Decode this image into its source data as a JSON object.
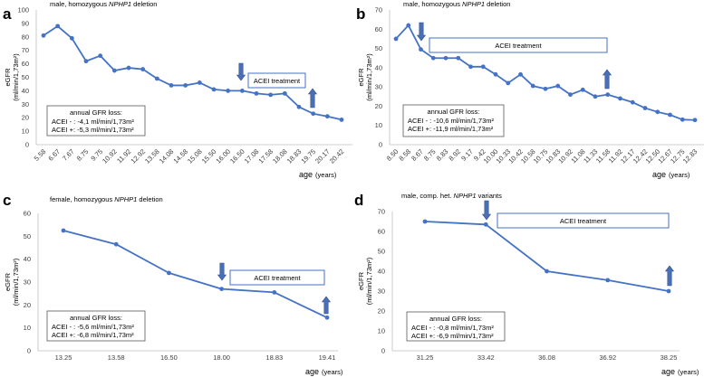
{
  "chart_data": [
    {
      "type": "line",
      "panel_letter": "a",
      "title_parts": [
        "male, homozygous ",
        "NPHP1",
        " deletion"
      ],
      "ylabel": [
        "eGFR",
        "(ml/min/1,73m²)"
      ],
      "xlabel": "age",
      "xlabel_unit": "(years)",
      "ylim": [
        0,
        100
      ],
      "yticks": [
        0,
        10,
        20,
        30,
        40,
        50,
        60,
        70,
        80,
        90,
        100
      ],
      "categories": [
        "5.58",
        "6.67",
        "7.67",
        "8.75",
        "9.75",
        "10.92",
        "11.92",
        "12.92",
        "13.58",
        "14.08",
        "14.58",
        "15.08",
        "15.50",
        "16.00",
        "16.50",
        "17.08",
        "17.58",
        "18.08",
        "18.83",
        "19.75",
        "20.17",
        "20.42"
      ],
      "values": [
        81,
        88,
        79,
        62,
        66,
        55,
        57,
        56,
        49,
        44,
        44,
        46,
        41,
        40,
        40,
        38,
        37,
        38,
        28,
        23,
        21,
        18.5
      ],
      "treatment_label": "ACEI treatment",
      "treatment_start_category": "16.50",
      "treatment_end_category": "19.75",
      "loss_box": {
        "title": "annual GFR loss:",
        "line1": "ACEI - :  -4,1 ml/min/1,73m²",
        "line2": "ACEI +:  -5,3 ml/min/1,73m²"
      }
    },
    {
      "type": "line",
      "panel_letter": "b",
      "title_parts": [
        "male, homozygous ",
        "NPHP1",
        " deletion"
      ],
      "ylabel": [
        "eGFR",
        "(ml/min/1,73m²)"
      ],
      "xlabel": "age",
      "xlabel_unit": "(years)",
      "ylim": [
        0,
        70
      ],
      "yticks": [
        0,
        10,
        20,
        30,
        40,
        50,
        60,
        70
      ],
      "categories": [
        "8.50",
        "8.58",
        "8.67",
        "8.75",
        "8.83",
        "8.92",
        "9.17",
        "9.42",
        "10.00",
        "10.33",
        "10.42",
        "10.58",
        "10.75",
        "10.83",
        "10.92",
        "11.08",
        "11.33",
        "11.58",
        "11.92",
        "12.17",
        "12.42",
        "12.50",
        "12.67",
        "12.75",
        "12.83"
      ],
      "values": [
        55,
        62,
        49.5,
        45,
        45,
        45,
        40.5,
        40.5,
        36.5,
        32,
        36.5,
        30.5,
        29,
        30.5,
        26,
        28.5,
        25,
        26,
        24,
        22,
        19,
        17,
        15.5,
        13,
        12.8
      ],
      "treatment_label": "ACEI treatment",
      "treatment_start_category": "8.67",
      "treatment_end_category": "11.58",
      "loss_box": {
        "title": "annual GFR loss:",
        "line1": "ACEI - :  -10,6 ml/min/1,73m²",
        "line2": "ACEI +:  -11,9 ml/min/1,73m²"
      }
    },
    {
      "type": "line",
      "panel_letter": "c",
      "title_parts": [
        "female, homozygous ",
        "NPHP1",
        " deletion"
      ],
      "ylabel": [
        "eGFR",
        "(ml/min/1,73m²)"
      ],
      "xlabel": "age",
      "xlabel_unit": "(years)",
      "ylim": [
        0,
        60
      ],
      "yticks": [
        0,
        10,
        20,
        30,
        40,
        50,
        60
      ],
      "categories": [
        "13.25",
        "13.58",
        "16.50",
        "18.00",
        "18.83",
        "19.41"
      ],
      "values": [
        52.5,
        46.5,
        34,
        27,
        25.5,
        14.5
      ],
      "treatment_label": "ACEI treatment",
      "treatment_start_category": "18.00",
      "treatment_end_category": "19.41",
      "loss_box": {
        "title": "annual GFR loss:",
        "line1": "ACEI - :  -5,6 ml/min/1,73m²",
        "line2": "ACEI +:  -6,8 ml/min/1,73m²"
      }
    },
    {
      "type": "line",
      "panel_letter": "d",
      "title_parts": [
        "male, comp. het. ",
        "NPHP1",
        " variants"
      ],
      "ylabel": [
        "eGFR",
        "(ml/min/1,73m²)"
      ],
      "xlabel": "age",
      "xlabel_unit": "(years)",
      "ylim": [
        0,
        70
      ],
      "yticks": [
        0,
        10,
        20,
        30,
        40,
        50,
        60,
        70
      ],
      "categories": [
        "31.25",
        "33.42",
        "36.08",
        "36.92",
        "38.25"
      ],
      "values": [
        65,
        63.5,
        40,
        35.5,
        30
      ],
      "treatment_label": "ACEI treatment",
      "treatment_start_category": "33.42",
      "treatment_end_category": "38.25",
      "loss_box": {
        "title": "annual GFR loss:",
        "line1": "ACEI - :  -0,8 ml/min/1,73m²",
        "line2": "ACEI +:  -6,9 ml/min/1,73m²"
      }
    }
  ],
  "colors": {
    "line": "#4472c4",
    "arrow": "#4a6fb5",
    "box_border": "#4472c4",
    "loss_border": "#595959"
  }
}
